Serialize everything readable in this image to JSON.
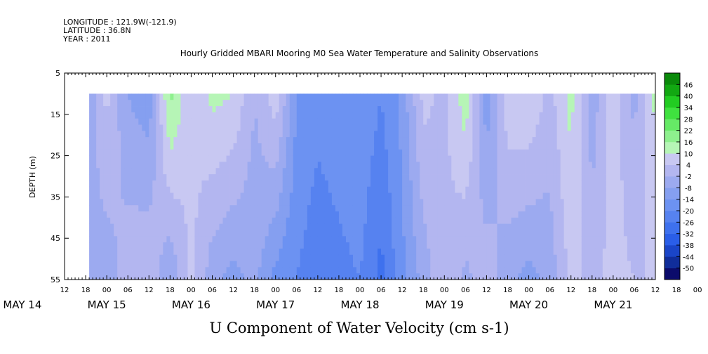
{
  "header": {
    "longitude": "LONGITUDE : 121.9W(-121.9)",
    "latitude": "LATITUDE : 36.8N",
    "year": "YEAR : 2011"
  },
  "chart_data": {
    "type": "heatmap",
    "title": "Hourly Gridded MBARI Mooring M0 Sea Water Temperature and Salinity Observations",
    "subtitle": "U Component of Water Velocity (cm s-1)",
    "ylabel": "DEPTH (m)",
    "y_ticks": [
      5,
      15,
      25,
      35,
      45,
      55
    ],
    "ylim": [
      55,
      5
    ],
    "y_data_range": [
      10,
      55
    ],
    "x_hour_ticks": [
      "12",
      "18",
      "00",
      "06",
      "12",
      "18",
      "00",
      "06",
      "12",
      "18",
      "00",
      "06",
      "12",
      "18",
      "00",
      "06",
      "12",
      "18",
      "00",
      "06",
      "12",
      "18",
      "00",
      "06",
      "12",
      "18",
      "00",
      "06",
      "12",
      "18",
      "00",
      "06",
      "12"
    ],
    "x_day_labels": [
      {
        "label": "MAY 14",
        "hour": 0
      },
      {
        "label": "MAY 15",
        "hour": 24
      },
      {
        "label": "MAY 16",
        "hour": 48
      },
      {
        "label": "MAY 17",
        "hour": 72
      },
      {
        "label": "MAY 18",
        "hour": 96
      },
      {
        "label": "MAY 19",
        "hour": 120
      },
      {
        "label": "MAY 20",
        "hour": 144
      },
      {
        "label": "MAY 21",
        "hour": 168
      }
    ],
    "x_range_hours_from_may14_00": [
      12,
      180
    ],
    "data_start_hour": 19,
    "data_end_hour": 180,
    "colorbar": {
      "levels": [
        -50,
        -44,
        -38,
        -32,
        -26,
        -20,
        -14,
        -8,
        -2,
        4,
        10,
        16,
        22,
        28,
        34,
        40,
        46
      ],
      "labels": [
        "46",
        "40",
        "34",
        "28",
        "22",
        "16",
        "10",
        "4",
        "-2",
        "-8",
        "-14",
        "-20",
        "-26",
        "-32",
        "-38",
        "-44",
        "-50"
      ],
      "colors": [
        "#0b0b6b",
        "#102d9a",
        "#1a45c8",
        "#2a5ee8",
        "#3e71ee",
        "#5682f0",
        "#6c92f2",
        "#859ff0",
        "#9caaf0",
        "#b3b6f0",
        "#c8c8f2",
        "#b6f5b6",
        "#8ef08e",
        "#66ea66",
        "#3fe23f",
        "#22cc22",
        "#12a812",
        "#0a8a0a",
        "#0a6e0a",
        "#0b5a0b"
      ]
    },
    "velocity_profile_by_time": [
      {
        "hour": 19,
        "surface": -6,
        "bottom": -4
      },
      {
        "hour": 24,
        "surface": 6,
        "bottom": -6
      },
      {
        "hour": 30,
        "surface": -8,
        "bottom": 2
      },
      {
        "hour": 36,
        "surface": -12,
        "bottom": 4
      },
      {
        "hour": 42,
        "surface": 18,
        "bottom": -8
      },
      {
        "hour": 48,
        "surface": 4,
        "bottom": 6
      },
      {
        "hour": 54,
        "surface": 12,
        "bottom": -6
      },
      {
        "hour": 60,
        "surface": 10,
        "bottom": -10
      },
      {
        "hour": 66,
        "surface": -2,
        "bottom": -6
      },
      {
        "hour": 72,
        "surface": 8,
        "bottom": -16
      },
      {
        "hour": 78,
        "surface": -14,
        "bottom": -20
      },
      {
        "hour": 84,
        "surface": -18,
        "bottom": -24
      },
      {
        "hour": 90,
        "surface": -16,
        "bottom": -22
      },
      {
        "hour": 96,
        "surface": -14,
        "bottom": -20
      },
      {
        "hour": 102,
        "surface": -20,
        "bottom": -28
      },
      {
        "hour": 108,
        "surface": -12,
        "bottom": -16
      },
      {
        "hour": 114,
        "surface": 6,
        "bottom": -6
      },
      {
        "hour": 120,
        "surface": 2,
        "bottom": 4
      },
      {
        "hour": 126,
        "surface": 14,
        "bottom": -4
      },
      {
        "hour": 132,
        "surface": -12,
        "bottom": 2
      },
      {
        "hour": 138,
        "surface": 8,
        "bottom": -6
      },
      {
        "hour": 144,
        "surface": 10,
        "bottom": -10
      },
      {
        "hour": 150,
        "surface": 2,
        "bottom": -6
      },
      {
        "hour": 156,
        "surface": 12,
        "bottom": 6
      },
      {
        "hour": 162,
        "surface": -6,
        "bottom": 2
      },
      {
        "hour": 168,
        "surface": 8,
        "bottom": 6
      },
      {
        "hour": 174,
        "surface": -4,
        "bottom": 4
      },
      {
        "hour": 180,
        "surface": 12,
        "bottom": 4
      }
    ]
  }
}
